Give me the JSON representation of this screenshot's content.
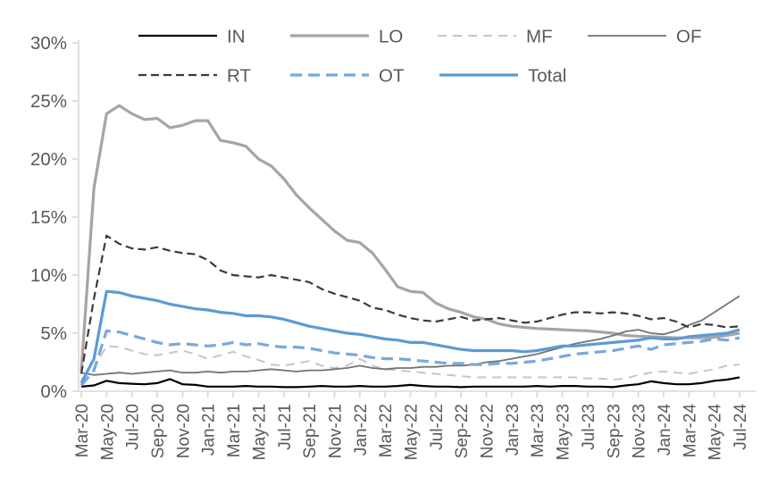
{
  "chart_data": {
    "type": "line",
    "title": "",
    "xlabel": "",
    "ylabel": "",
    "ylim": [
      0,
      30
    ],
    "ytick_step": 5,
    "ytick_suffix": "%",
    "grid": false,
    "legend_position": "top",
    "text_color": "#595959",
    "axis_color": "#D9D9D9",
    "categories": [
      "Mar-20",
      "Apr-20",
      "May-20",
      "Jun-20",
      "Jul-20",
      "Aug-20",
      "Sep-20",
      "Oct-20",
      "Nov-20",
      "Dec-20",
      "Jan-21",
      "Feb-21",
      "Mar-21",
      "Apr-21",
      "May-21",
      "Jun-21",
      "Jul-21",
      "Aug-21",
      "Sep-21",
      "Oct-21",
      "Nov-21",
      "Dec-21",
      "Jan-22",
      "Feb-22",
      "Mar-22",
      "Apr-22",
      "May-22",
      "Jun-22",
      "Jul-22",
      "Aug-22",
      "Sep-22",
      "Oct-22",
      "Nov-22",
      "Dec-22",
      "Jan-23",
      "Feb-23",
      "Mar-23",
      "Apr-23",
      "May-23",
      "Jun-23",
      "Jul-23",
      "Aug-23",
      "Sep-23",
      "Oct-23",
      "Nov-23",
      "Dec-23",
      "Jan-24",
      "Feb-24",
      "Mar-24",
      "Apr-24",
      "May-24",
      "Jun-24",
      "Jul-24"
    ],
    "x_label_every": 2,
    "x_labels_shown": [
      "Mar-20",
      "May-20",
      "Jul-20",
      "Sep-20",
      "Nov-20",
      "Jan-21",
      "Mar-21",
      "May-21",
      "Jul-21",
      "Sep-21",
      "Nov-21",
      "Jan-22",
      "Mar-22",
      "May-22",
      "Jul-22",
      "Sep-22",
      "Nov-22",
      "Jan-23",
      "Mar-23",
      "May-23",
      "Jul-23",
      "Sep-23",
      "Nov-23",
      "Jan-24",
      "Mar-24",
      "May-24",
      "Jul-24"
    ],
    "ytick_labels": [
      "0%",
      "5%",
      "10%",
      "15%",
      "20%",
      "25%",
      "30%"
    ],
    "legend_rows": [
      [
        "IN",
        "LO",
        "MF",
        "OF"
      ],
      [
        "RT",
        "OT",
        "Total"
      ]
    ],
    "series": [
      {
        "name": "IN",
        "color": "#000000",
        "style": "solid",
        "width": 2.2,
        "values": [
          0.4,
          0.5,
          0.9,
          0.7,
          0.65,
          0.6,
          0.7,
          1.05,
          0.6,
          0.55,
          0.4,
          0.4,
          0.4,
          0.45,
          0.4,
          0.4,
          0.35,
          0.35,
          0.4,
          0.45,
          0.4,
          0.4,
          0.45,
          0.4,
          0.4,
          0.45,
          0.55,
          0.45,
          0.4,
          0.4,
          0.35,
          0.4,
          0.4,
          0.4,
          0.4,
          0.4,
          0.45,
          0.4,
          0.45,
          0.45,
          0.4,
          0.4,
          0.35,
          0.5,
          0.6,
          0.85,
          0.7,
          0.6,
          0.6,
          0.7,
          0.9,
          1.0,
          1.2
        ]
      },
      {
        "name": "LO",
        "color": "#A5A5A5",
        "style": "solid",
        "width": 3.2,
        "values": [
          1.7,
          17.5,
          23.9,
          24.6,
          23.9,
          23.4,
          23.5,
          22.7,
          22.9,
          23.3,
          23.3,
          21.6,
          21.4,
          21.1,
          20.0,
          19.4,
          18.3,
          16.9,
          15.8,
          14.8,
          13.8,
          13.0,
          12.8,
          11.9,
          10.5,
          9.0,
          8.6,
          8.5,
          7.6,
          7.1,
          6.8,
          6.4,
          6.2,
          5.8,
          5.6,
          5.5,
          5.4,
          5.35,
          5.3,
          5.25,
          5.2,
          5.1,
          5.0,
          4.8,
          4.75,
          4.7,
          4.65,
          4.6,
          4.6,
          4.6,
          4.65,
          4.8,
          5.0
        ]
      },
      {
        "name": "MF",
        "color": "#C6C6C6",
        "style": "dashed",
        "width": 2,
        "values": [
          1.0,
          2.0,
          3.9,
          3.8,
          3.5,
          3.2,
          3.1,
          3.3,
          3.5,
          3.2,
          2.8,
          3.1,
          3.4,
          3.0,
          2.7,
          2.3,
          2.2,
          2.4,
          2.6,
          2.2,
          2.0,
          2.2,
          2.8,
          2.2,
          1.9,
          1.8,
          1.7,
          1.6,
          1.5,
          1.4,
          1.3,
          1.2,
          1.2,
          1.2,
          1.2,
          1.2,
          1.2,
          1.2,
          1.2,
          1.2,
          1.1,
          1.1,
          1.0,
          1.1,
          1.4,
          1.6,
          1.7,
          1.6,
          1.5,
          1.7,
          1.9,
          2.2,
          2.3
        ]
      },
      {
        "name": "OF",
        "color": "#737373",
        "style": "solid",
        "width": 1.8,
        "values": [
          1.6,
          1.4,
          1.5,
          1.6,
          1.5,
          1.6,
          1.7,
          1.8,
          1.6,
          1.6,
          1.7,
          1.6,
          1.7,
          1.7,
          1.8,
          1.9,
          1.8,
          1.7,
          1.8,
          1.8,
          1.9,
          2.0,
          2.2,
          2.0,
          1.9,
          2.0,
          2.0,
          2.1,
          2.1,
          2.2,
          2.2,
          2.3,
          2.5,
          2.6,
          2.8,
          3.0,
          3.2,
          3.5,
          3.8,
          4.1,
          4.3,
          4.5,
          4.8,
          5.15,
          5.3,
          5.0,
          4.9,
          5.2,
          5.7,
          6.1,
          6.8,
          7.5,
          8.2
        ]
      },
      {
        "name": "RT",
        "color": "#3B3B3B",
        "style": "dashed",
        "width": 2.2,
        "values": [
          1.5,
          8.0,
          13.4,
          12.7,
          12.3,
          12.2,
          12.4,
          12.1,
          11.9,
          11.8,
          11.3,
          10.4,
          10.0,
          9.9,
          9.8,
          10.0,
          9.8,
          9.6,
          9.4,
          8.8,
          8.4,
          8.1,
          7.8,
          7.2,
          7.0,
          6.6,
          6.3,
          6.1,
          6.0,
          6.2,
          6.4,
          6.1,
          6.2,
          6.3,
          6.1,
          5.9,
          6.0,
          6.3,
          6.6,
          6.8,
          6.8,
          6.7,
          6.8,
          6.7,
          6.5,
          6.2,
          6.3,
          6.0,
          5.5,
          5.8,
          5.7,
          5.5,
          5.6
        ]
      },
      {
        "name": "OT",
        "color": "#78A9DC",
        "style": "dashed",
        "width": 3.2,
        "values": [
          0.5,
          1.8,
          5.2,
          5.1,
          4.8,
          4.5,
          4.2,
          4.0,
          4.1,
          4.0,
          3.9,
          4.0,
          4.2,
          4.0,
          4.1,
          3.9,
          3.8,
          3.8,
          3.7,
          3.5,
          3.3,
          3.2,
          3.1,
          2.9,
          2.8,
          2.8,
          2.7,
          2.6,
          2.5,
          2.4,
          2.4,
          2.3,
          2.3,
          2.4,
          2.4,
          2.5,
          2.6,
          2.8,
          3.0,
          3.2,
          3.3,
          3.4,
          3.5,
          3.7,
          3.9,
          3.6,
          4.0,
          4.1,
          4.2,
          4.3,
          4.5,
          4.4,
          4.6
        ]
      },
      {
        "name": "Total",
        "color": "#5B9BD5",
        "style": "solid",
        "width": 3.2,
        "values": [
          0.7,
          2.8,
          8.6,
          8.5,
          8.2,
          8.0,
          7.8,
          7.5,
          7.3,
          7.1,
          7.0,
          6.8,
          6.7,
          6.5,
          6.5,
          6.4,
          6.2,
          5.9,
          5.6,
          5.4,
          5.2,
          5.0,
          4.9,
          4.7,
          4.5,
          4.4,
          4.2,
          4.2,
          4.0,
          3.8,
          3.6,
          3.5,
          3.5,
          3.5,
          3.5,
          3.4,
          3.5,
          3.7,
          3.9,
          3.9,
          4.0,
          4.1,
          4.2,
          4.3,
          4.4,
          4.6,
          4.5,
          4.5,
          4.7,
          4.8,
          4.9,
          5.0,
          5.3
        ]
      }
    ]
  }
}
